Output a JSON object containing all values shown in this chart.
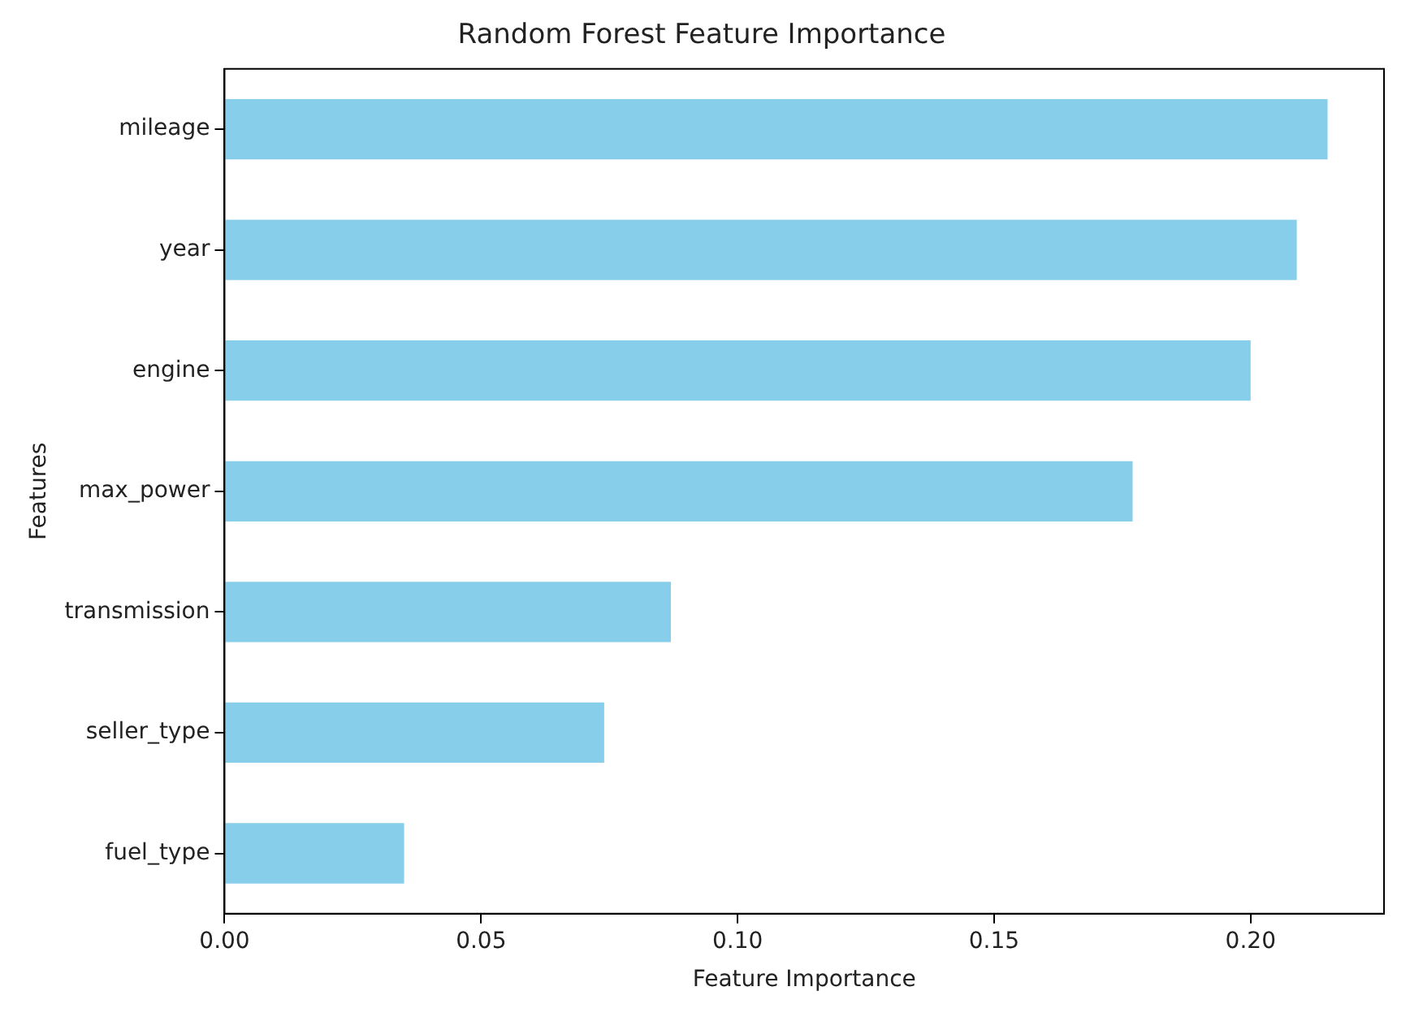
{
  "chart_data": {
    "type": "bar",
    "orientation": "horizontal",
    "title": "Random Forest Feature Importance",
    "xlabel": "Feature Importance",
    "ylabel": "Features",
    "categories": [
      "mileage",
      "year",
      "engine",
      "max_power",
      "transmission",
      "seller_type",
      "fuel_type"
    ],
    "values": [
      0.215,
      0.209,
      0.2,
      0.177,
      0.087,
      0.074,
      0.035
    ],
    "color": "#87ceeb",
    "xlim": [
      0,
      0.226
    ],
    "xticks": [
      {
        "value": 0,
        "label": "0.00"
      },
      {
        "value": 0.05,
        "label": "0.05"
      },
      {
        "value": 0.1,
        "label": "0.10"
      },
      {
        "value": 0.15,
        "label": "0.15"
      },
      {
        "value": 0.2,
        "label": "0.20"
      }
    ],
    "grid": false,
    "legend": false
  }
}
